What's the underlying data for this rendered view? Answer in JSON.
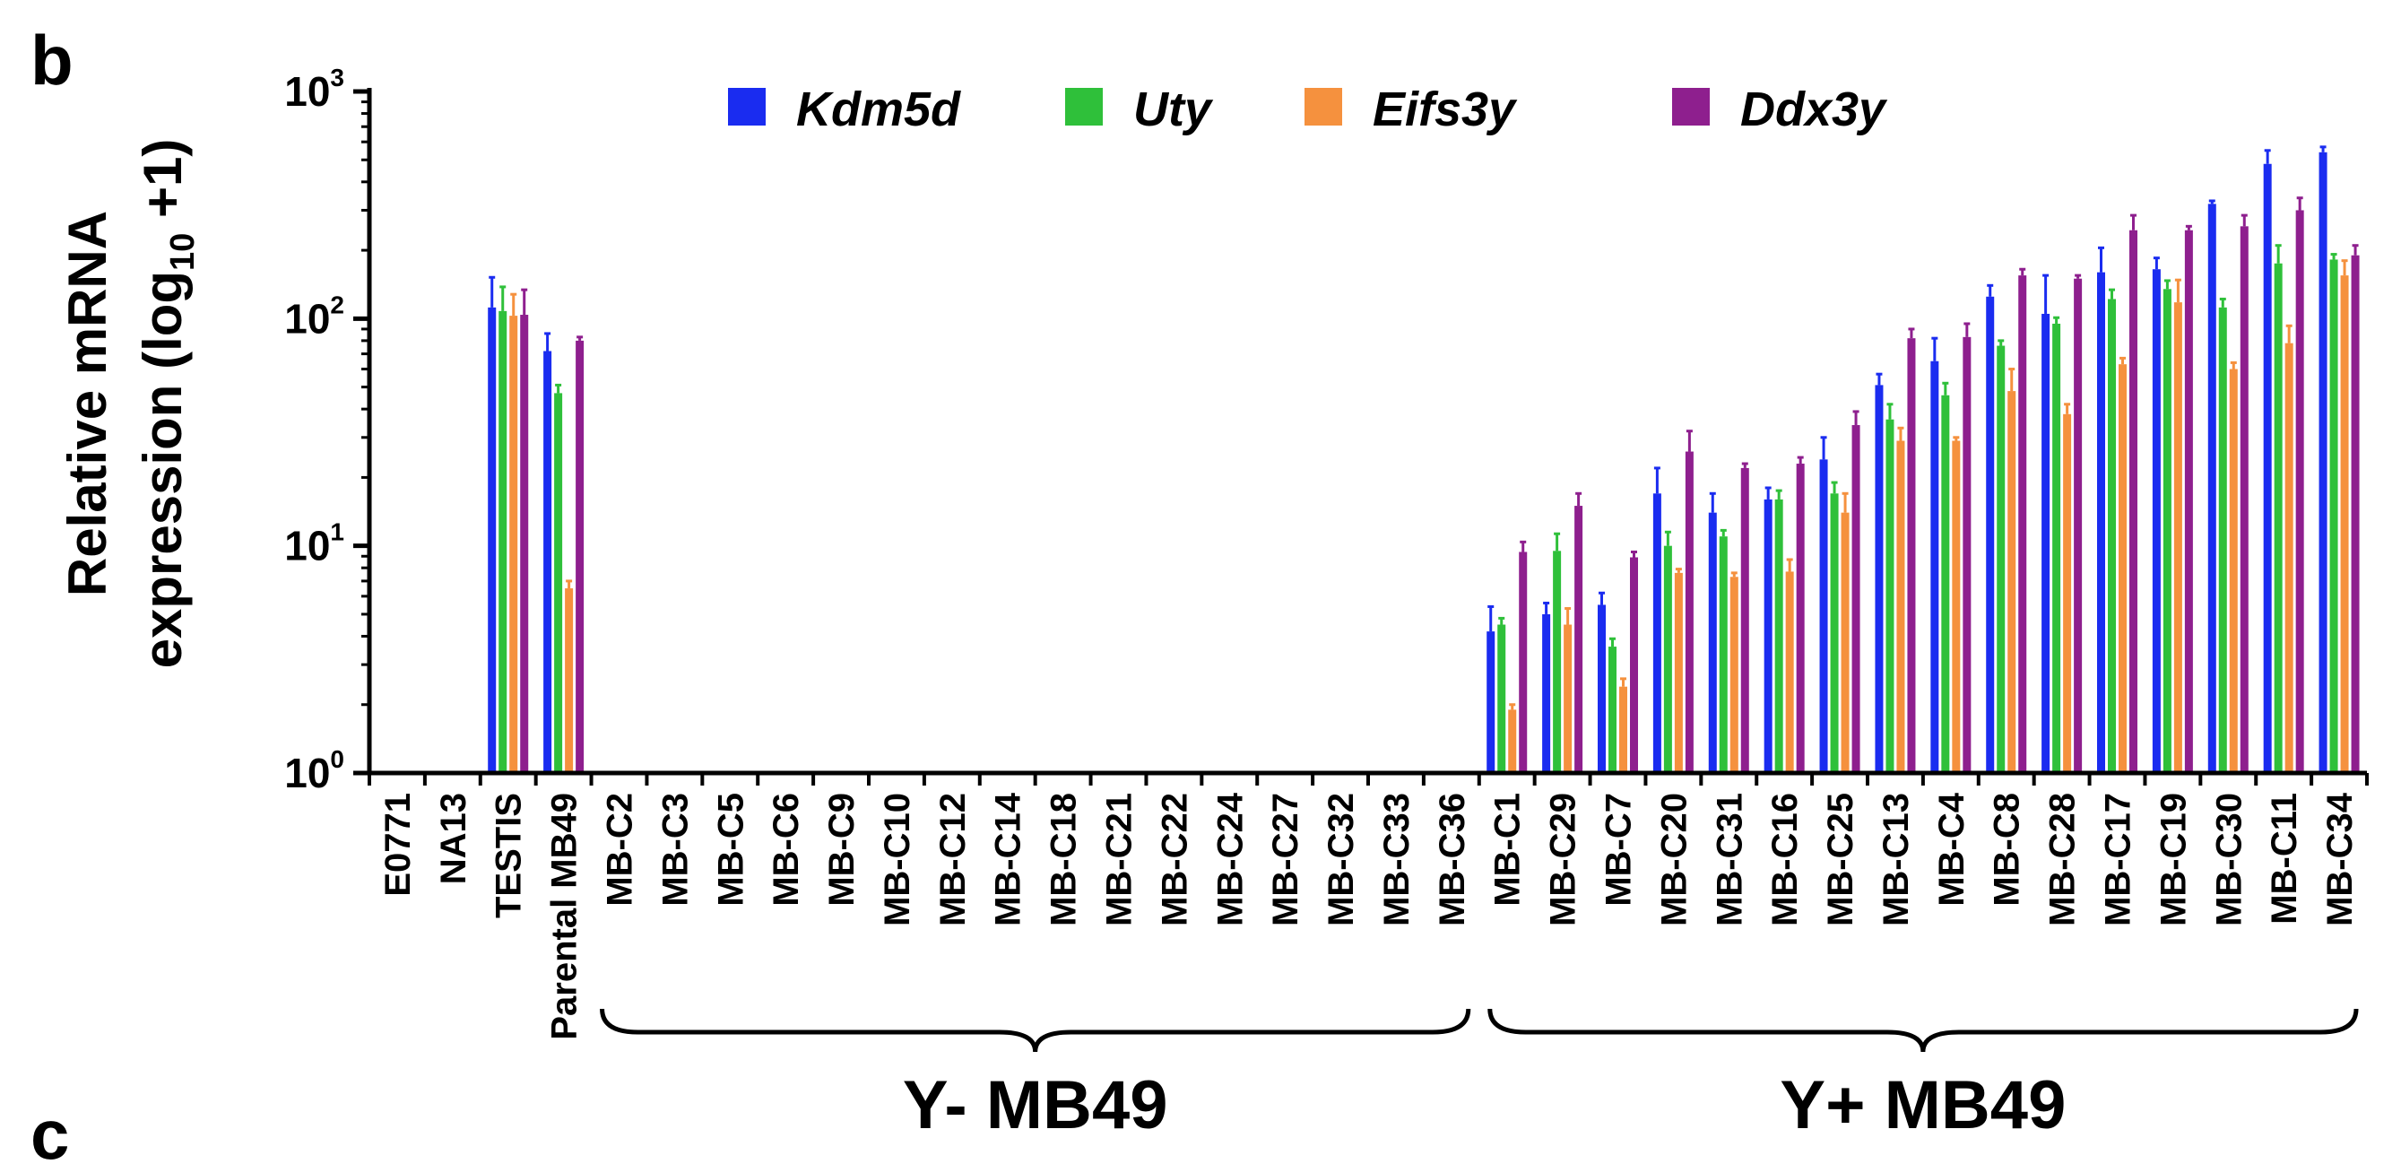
{
  "panel_labels": {
    "current": "b",
    "next": "c"
  },
  "chart_data": {
    "type": "bar",
    "scale": "log",
    "ylim": [
      1,
      1000
    ],
    "y_ticks": [
      {
        "base": "10",
        "exp": "0",
        "value": 1
      },
      {
        "base": "10",
        "exp": "1",
        "value": 10
      },
      {
        "base": "10",
        "exp": "2",
        "value": 100
      },
      {
        "base": "10",
        "exp": "3",
        "value": 1000
      }
    ],
    "ylabel": {
      "line1": "Relative mRNA",
      "line2_prefix": "expression (log",
      "line2_sub": "10",
      "line2_suffix": " +1)"
    },
    "legend_position": "top-center",
    "categories": [
      "E0771",
      "NA13",
      "TESTIS",
      "Parental MB49",
      "MB-C2",
      "MB-C3",
      "MB-C5",
      "MB-C6",
      "MB-C9",
      "MB-C10",
      "MB-C12",
      "MB-C14",
      "MB-C18",
      "MB-C21",
      "MB-C22",
      "MB-C24",
      "MB-C27",
      "MB-C32",
      "MB-C33",
      "MB-C36",
      "MB-C1",
      "MB-C29",
      "MB-C7",
      "MB-C20",
      "MB-C31",
      "MB-C16",
      "MB-C25",
      "MB-C13",
      "MB-C4",
      "MB-C8",
      "MB-C28",
      "MB-C17",
      "MB-C19",
      "MB-C30",
      "MB-C11",
      "MB-C34"
    ],
    "series": [
      {
        "name": "Kdm5d",
        "color": "#1a2cf0",
        "values": [
          null,
          null,
          112,
          72,
          null,
          null,
          null,
          null,
          null,
          null,
          null,
          null,
          null,
          null,
          null,
          null,
          null,
          null,
          null,
          null,
          4.2,
          5.0,
          5.5,
          17,
          14,
          16,
          24,
          51,
          65,
          125,
          105,
          160,
          165,
          320,
          480,
          540
        ],
        "errors": [
          null,
          null,
          40,
          14,
          null,
          null,
          null,
          null,
          null,
          null,
          null,
          null,
          null,
          null,
          null,
          null,
          null,
          null,
          null,
          null,
          1.2,
          0.6,
          0.7,
          5,
          3,
          2,
          6,
          6,
          17,
          15,
          50,
          45,
          20,
          10,
          70,
          30
        ]
      },
      {
        "name": "Uty",
        "color": "#2fc03a",
        "values": [
          null,
          null,
          108,
          47,
          null,
          null,
          null,
          null,
          null,
          null,
          null,
          null,
          null,
          null,
          null,
          null,
          null,
          null,
          null,
          null,
          4.5,
          9.5,
          3.6,
          10,
          11,
          16,
          17,
          36,
          46,
          76,
          95,
          122,
          135,
          112,
          175,
          182
        ],
        "errors": [
          null,
          null,
          30,
          4,
          null,
          null,
          null,
          null,
          null,
          null,
          null,
          null,
          null,
          null,
          null,
          null,
          null,
          null,
          null,
          null,
          0.3,
          1.8,
          0.3,
          1.5,
          0.7,
          1.5,
          2,
          6,
          6,
          4,
          6,
          12,
          12,
          10,
          35,
          10
        ]
      },
      {
        "name": "Eifs3y",
        "color": "#f5913e",
        "values": [
          null,
          null,
          103,
          6.5,
          null,
          null,
          null,
          null,
          null,
          null,
          null,
          null,
          null,
          null,
          null,
          null,
          null,
          null,
          null,
          null,
          1.9,
          4.5,
          2.4,
          7.6,
          7.3,
          7.7,
          14,
          29,
          29,
          48,
          38,
          63,
          118,
          60,
          78,
          155
        ],
        "errors": [
          null,
          null,
          25,
          0.5,
          null,
          null,
          null,
          null,
          null,
          null,
          null,
          null,
          null,
          null,
          null,
          null,
          null,
          null,
          null,
          null,
          0.1,
          0.8,
          0.2,
          0.3,
          0.3,
          1,
          3,
          4,
          1,
          12,
          4,
          4,
          30,
          4,
          15,
          25
        ]
      },
      {
        "name": "Ddx3y",
        "color": "#8e1f8e",
        "values": [
          null,
          null,
          104,
          80,
          null,
          null,
          null,
          null,
          null,
          null,
          null,
          null,
          null,
          null,
          null,
          null,
          null,
          null,
          null,
          null,
          9.4,
          15,
          8.9,
          26,
          22,
          23,
          34,
          82,
          83,
          155,
          150,
          245,
          245,
          255,
          300,
          190
        ],
        "errors": [
          null,
          null,
          30,
          3,
          null,
          null,
          null,
          null,
          null,
          null,
          null,
          null,
          null,
          null,
          null,
          null,
          null,
          null,
          null,
          null,
          1,
          2,
          0.5,
          6,
          1,
          1.5,
          5,
          8,
          12,
          10,
          5,
          40,
          10,
          30,
          40,
          20
        ]
      }
    ],
    "groups": [
      {
        "label": "Y- MB49",
        "from": 4,
        "to": 19
      },
      {
        "label": "Y+ MB49",
        "from": 20,
        "to": 35
      }
    ]
  }
}
